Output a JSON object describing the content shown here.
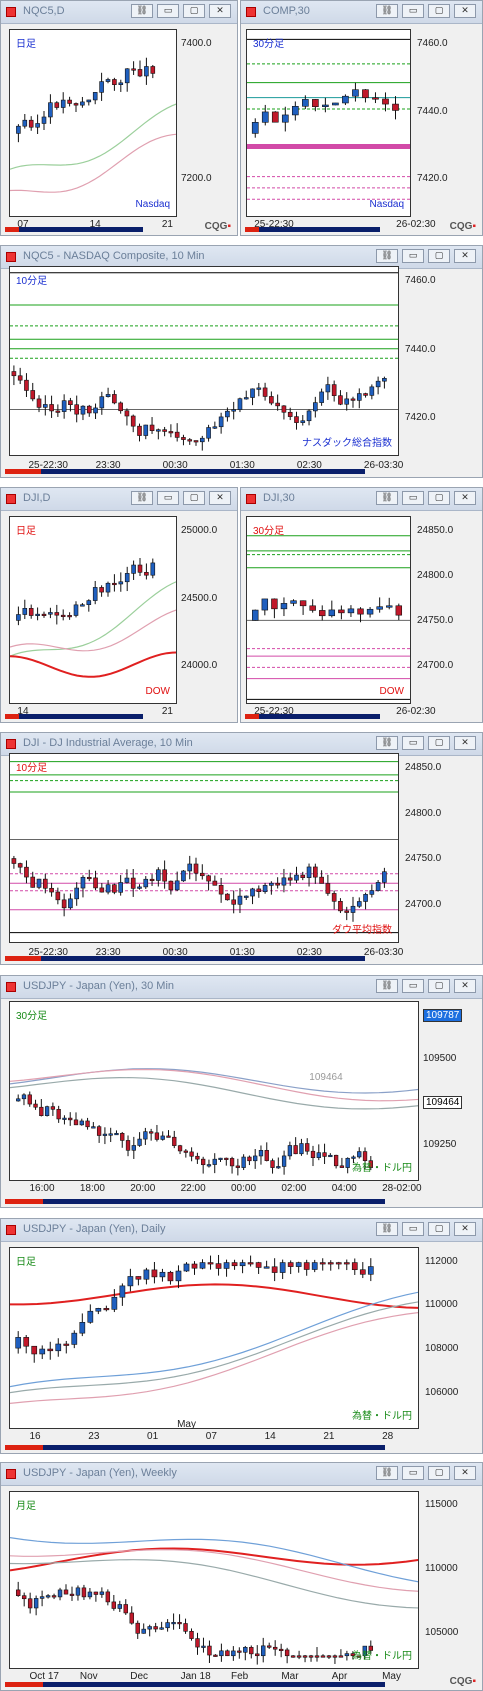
{
  "windows": [
    {
      "id": "w1",
      "title": "NQC5,D",
      "buttons": [
        "link-icon",
        "minimize-icon",
        "maximize-icon",
        "close-icon"
      ],
      "label_tl": "日足",
      "label_br": "Nasdaq",
      "yticks": [
        "7400.0",
        "7200.0"
      ],
      "xticks": [
        "07",
        "14",
        "21"
      ],
      "logo": "CQG"
    },
    {
      "id": "w2",
      "title": "COMP,30",
      "buttons": [
        "link-icon",
        "minimize-icon",
        "maximize-icon",
        "close-icon"
      ],
      "label_tl": "30分足",
      "label_br": "Nasdaq",
      "yticks": [
        "7460.0",
        "7440.0",
        "7420.0"
      ],
      "xticks": [
        "25-22:30",
        "26-02:30"
      ],
      "logo": "CQG"
    },
    {
      "id": "w3",
      "title": "NQC5 - NASDAQ Composite, 10 Min",
      "buttons": [
        "link-icon",
        "minimize-icon",
        "maximize-icon",
        "close-icon"
      ],
      "label_tl": "10分足",
      "label_br": "ナスダック総合指数",
      "yticks": [
        "7460.0",
        "7440.0",
        "7420.0"
      ],
      "xticks": [
        "25-22:30",
        "23:30",
        "00:30",
        "01:30",
        "02:30",
        "26-03:30"
      ]
    },
    {
      "id": "w4",
      "title": "DJI,D",
      "buttons": [
        "link-icon",
        "minimize-icon",
        "maximize-icon",
        "close-icon"
      ],
      "label_tl": "日足",
      "label_br": "DOW",
      "yticks": [
        "25000.0",
        "24500.0",
        "24000.0"
      ],
      "xticks": [
        "14",
        "21"
      ]
    },
    {
      "id": "w5",
      "title": "DJI,30",
      "buttons": [
        "link-icon",
        "minimize-icon",
        "maximize-icon",
        "close-icon"
      ],
      "label_tl": "30分足",
      "label_br": "DOW",
      "yticks": [
        "24850.0",
        "24800.0",
        "24750.0",
        "24700.0"
      ],
      "xticks": [
        "25-22:30",
        "26-02:30"
      ]
    },
    {
      "id": "w6",
      "title": "DJI - DJ Industrial Average, 10 Min",
      "buttons": [
        "link-icon",
        "minimize-icon",
        "maximize-icon",
        "close-icon"
      ],
      "label_tl": "10分足",
      "label_br": "ダウ平均指数",
      "yticks": [
        "24850.0",
        "24800.0",
        "24750.0",
        "24700.0"
      ],
      "xticks": [
        "25-22:30",
        "23:30",
        "00:30",
        "01:30",
        "02:30",
        "26-03:30"
      ]
    },
    {
      "id": "w7",
      "title": "USDJPY - Japan (Yen), 30 Min",
      "buttons": [
        "link-icon",
        "minimize-icon",
        "maximize-icon",
        "close-icon"
      ],
      "label_tl": "30分足",
      "label_br": "為替・ドル円",
      "yticks": [
        "109787",
        "109500",
        "109464",
        "109250"
      ],
      "xticks": [
        "16:00",
        "18:00",
        "20:00",
        "22:00",
        "00:00",
        "02:00",
        "04:00",
        "28-02:00"
      ],
      "inline_label": "109464"
    },
    {
      "id": "w8",
      "title": "USDJPY - Japan (Yen), Daily",
      "buttons": [
        "link-icon",
        "minimize-icon",
        "maximize-icon",
        "close-icon"
      ],
      "label_tl": "日足",
      "label_br": "為替・ドル円",
      "yticks": [
        "112000",
        "110000",
        "108000",
        "106000"
      ],
      "xticks": [
        "16",
        "23",
        "01",
        "07",
        "14",
        "21",
        "28"
      ],
      "month_label": "May"
    },
    {
      "id": "w9",
      "title": "USDJPY - Japan (Yen), Weekly",
      "buttons": [
        "link-icon",
        "minimize-icon",
        "maximize-icon",
        "close-icon"
      ],
      "label_tl": "月足",
      "label_br": "為替・ドル円",
      "yticks": [
        "115000",
        "110000",
        "105000"
      ],
      "xticks": [
        "Oct 17",
        "Nov",
        "Dec",
        "Jan 18",
        "Feb",
        "Mar",
        "Apr",
        "May"
      ],
      "logo": "CQG"
    }
  ],
  "colors": {
    "up": "#1f5fbf",
    "down": "#c0182a",
    "green": "#1aa01a",
    "magenta": "#d24aa8",
    "red_ma": "#e02020",
    "pink_ma": "#e0a0b0",
    "blue_label": "#1a2fd0",
    "red_label": "#e01010",
    "green_label": "#178a17"
  }
}
